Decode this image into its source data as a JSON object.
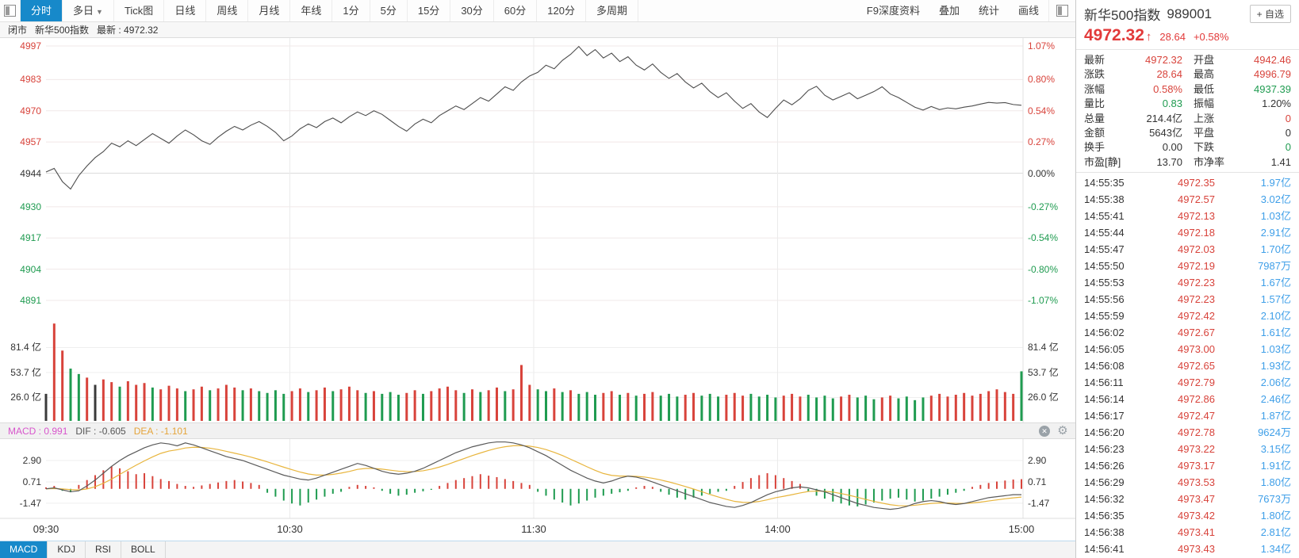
{
  "colors": {
    "red": "#d8433b",
    "green": "#1f9b50",
    "dark": "#3a3a3a",
    "accent": "#1789ca",
    "price_line": "#4d4d4d",
    "dif_line": "#5a5a5a",
    "dea_line": "#e8b53d",
    "vol_text": "#3f9fe8",
    "macd_label": "#d855cc"
  },
  "toolbar": {
    "items": [
      {
        "label": "分时",
        "active": true
      },
      {
        "label": "多日",
        "caret": true
      },
      {
        "label": "Tick图"
      },
      {
        "label": "日线"
      },
      {
        "label": "周线"
      },
      {
        "label": "月线"
      },
      {
        "label": "年线"
      },
      {
        "label": "1分"
      },
      {
        "label": "5分"
      },
      {
        "label": "15分"
      },
      {
        "label": "30分"
      },
      {
        "label": "60分"
      },
      {
        "label": "120分"
      },
      {
        "label": "多周期"
      }
    ],
    "right_items": [
      "F9深度资料",
      "叠加",
      "统计",
      "画线"
    ]
  },
  "subheader": {
    "market_status": "闭市",
    "name": "新华500指数",
    "latest": "最新 : 4972.32"
  },
  "indicator": {
    "header": [
      {
        "text": "MACD : 0.991",
        "color": "#d855cc"
      },
      {
        "text": "DIF : -0.605",
        "color": "#555555"
      },
      {
        "text": "DEA : -1.101",
        "color": "#e5a43a"
      }
    ],
    "tabs": [
      "MACD",
      "KDJ",
      "RSI",
      "BOLL"
    ],
    "active_tab": "MACD"
  },
  "panel": {
    "title": "新华500指数",
    "code": "989001",
    "watch_button": "+ 自选",
    "price": "4972.32",
    "arrow": "↑",
    "change": "28.64",
    "change_pct": "+0.58%",
    "quote": [
      {
        "l1": "最新",
        "v1": "4972.32",
        "c1": "red",
        "l2": "开盘",
        "v2": "4942.46",
        "c2": "red"
      },
      {
        "l1": "涨跌",
        "v1": "28.64",
        "c1": "red",
        "l2": "最高",
        "v2": "4996.79",
        "c2": "red"
      },
      {
        "l1": "涨幅",
        "v1": "0.58%",
        "c1": "red",
        "l2": "最低",
        "v2": "4937.39",
        "c2": "green"
      },
      {
        "l1": "量比",
        "v1": "0.83",
        "c1": "green",
        "l2": "振幅",
        "v2": "1.20%",
        "c2": "dark"
      },
      {
        "l1": "总量",
        "v1": "214.4亿",
        "c1": "dark",
        "l2": "上涨",
        "v2": "0",
        "c2": "red"
      },
      {
        "l1": "金额",
        "v1": "5643亿",
        "c1": "dark",
        "l2": "平盘",
        "v2": "0",
        "c2": "dark"
      },
      {
        "l1": "换手",
        "v1": "0.00",
        "c1": "dark",
        "l2": "下跌",
        "v2": "0",
        "c2": "green"
      },
      {
        "l1": "市盈[静]",
        "v1": "13.70",
        "c1": "dark",
        "l2": "市净率",
        "v2": "1.41",
        "c2": "dark"
      }
    ],
    "ticks": [
      {
        "time": "14:55:35",
        "price": "4972.35",
        "vol": "1.97亿"
      },
      {
        "time": "14:55:38",
        "price": "4972.57",
        "vol": "3.02亿"
      },
      {
        "time": "14:55:41",
        "price": "4972.13",
        "vol": "1.03亿"
      },
      {
        "time": "14:55:44",
        "price": "4972.18",
        "vol": "2.91亿"
      },
      {
        "time": "14:55:47",
        "price": "4972.03",
        "vol": "1.70亿"
      },
      {
        "time": "14:55:50",
        "price": "4972.19",
        "vol": "7987万"
      },
      {
        "time": "14:55:53",
        "price": "4972.23",
        "vol": "1.67亿"
      },
      {
        "time": "14:55:56",
        "price": "4972.23",
        "vol": "1.57亿"
      },
      {
        "time": "14:55:59",
        "price": "4972.42",
        "vol": "2.10亿"
      },
      {
        "time": "14:56:02",
        "price": "4972.67",
        "vol": "1.61亿"
      },
      {
        "time": "14:56:05",
        "price": "4973.00",
        "vol": "1.03亿"
      },
      {
        "time": "14:56:08",
        "price": "4972.65",
        "vol": "1.93亿"
      },
      {
        "time": "14:56:11",
        "price": "4972.79",
        "vol": "2.06亿"
      },
      {
        "time": "14:56:14",
        "price": "4972.86",
        "vol": "2.46亿"
      },
      {
        "time": "14:56:17",
        "price": "4972.47",
        "vol": "1.87亿"
      },
      {
        "time": "14:56:20",
        "price": "4972.78",
        "vol": "9624万"
      },
      {
        "time": "14:56:23",
        "price": "4973.22",
        "vol": "3.15亿"
      },
      {
        "time": "14:56:26",
        "price": "4973.17",
        "vol": "1.91亿"
      },
      {
        "time": "14:56:29",
        "price": "4973.53",
        "vol": "1.80亿"
      },
      {
        "time": "14:56:32",
        "price": "4973.47",
        "vol": "7673万"
      },
      {
        "time": "14:56:35",
        "price": "4973.42",
        "vol": "1.80亿"
      },
      {
        "time": "14:56:38",
        "price": "4973.41",
        "vol": "2.81亿"
      },
      {
        "time": "14:56:41",
        "price": "4973.43",
        "vol": "1.34亿"
      }
    ]
  },
  "chart_data": {
    "type": "line",
    "title": "新华500指数 分时图",
    "x_labels": [
      "09:30",
      "10:30",
      "11:30",
      "14:00",
      "15:00"
    ],
    "price_axis_left": [
      "4997",
      "4983",
      "4970",
      "4957",
      "4944",
      "4930",
      "4917",
      "4904",
      "4891"
    ],
    "price_axis_left_colors": [
      "red",
      "red",
      "red",
      "red",
      "dark",
      "green",
      "green",
      "green",
      "green"
    ],
    "price_axis_right": [
      "1.07%",
      "0.80%",
      "0.54%",
      "0.27%",
      "0.00%",
      "-0.27%",
      "-0.54%",
      "-0.80%",
      "-1.07%"
    ],
    "prev_close": 4943.68,
    "open": 4942.46,
    "high": 4996.79,
    "low": 4937.39,
    "close": 4972.32,
    "price_range": [
      4891,
      4997
    ],
    "price": [
      4944.5,
      4946.0,
      4940.5,
      4937.4,
      4943.0,
      4947.0,
      4950.5,
      4953.0,
      4956.5,
      4955.0,
      4957.5,
      4955.5,
      4958.0,
      4960.5,
      4958.5,
      4956.5,
      4959.5,
      4962.0,
      4960.0,
      4957.5,
      4956.0,
      4959.0,
      4961.5,
      4963.5,
      4962.0,
      4964.0,
      4965.5,
      4963.5,
      4961.0,
      4957.5,
      4959.5,
      4962.5,
      4964.5,
      4963.0,
      4965.5,
      4967.0,
      4965.0,
      4967.5,
      4969.5,
      4968.0,
      4970.0,
      4968.5,
      4966.0,
      4963.5,
      4961.5,
      4964.5,
      4966.5,
      4965.0,
      4968.0,
      4970.0,
      4972.0,
      4970.5,
      4973.0,
      4975.5,
      4974.0,
      4977.0,
      4980.0,
      4978.5,
      4982.0,
      4984.5,
      4986.0,
      4989.0,
      4987.5,
      4991.0,
      4993.5,
      4996.8,
      4993.0,
      4995.5,
      4992.0,
      4994.0,
      4990.5,
      4992.5,
      4989.0,
      4987.0,
      4989.5,
      4986.0,
      4983.5,
      4985.5,
      4982.0,
      4979.5,
      4981.5,
      4978.0,
      4975.5,
      4977.5,
      4974.0,
      4971.0,
      4973.0,
      4969.5,
      4967.2,
      4971.0,
      4974.5,
      4972.5,
      4975.0,
      4978.5,
      4980.2,
      4976.5,
      4974.5,
      4976.0,
      4977.5,
      4975.0,
      4976.5,
      4978.0,
      4980.0,
      4977.0,
      4975.5,
      4973.5,
      4971.5,
      4970.3,
      4971.8,
      4970.5,
      4971.2,
      4970.8,
      4971.5,
      4972.0,
      4972.8,
      4973.5,
      4973.2,
      4973.4,
      4972.6,
      4972.3
    ],
    "volume_axis": [
      "81.4 亿",
      "53.7 亿",
      "26.0 亿"
    ],
    "volume_unit": "亿",
    "volume": [
      30,
      108,
      78,
      58,
      52,
      48,
      40,
      46,
      43,
      38,
      44,
      40,
      42,
      37,
      35,
      39,
      36,
      33,
      35,
      38,
      34,
      36,
      40,
      37,
      34,
      36,
      33,
      31,
      34,
      30,
      33,
      36,
      32,
      34,
      37,
      33,
      35,
      38,
      34,
      31,
      33,
      30,
      32,
      29,
      31,
      34,
      30,
      33,
      36,
      38,
      34,
      31,
      35,
      32,
      34,
      37,
      33,
      35,
      62,
      40,
      35,
      33,
      36,
      32,
      34,
      30,
      32,
      29,
      31,
      33,
      29,
      31,
      28,
      30,
      32,
      28,
      30,
      27,
      29,
      31,
      28,
      30,
      27,
      29,
      31,
      28,
      30,
      27,
      29,
      26,
      28,
      30,
      27,
      29,
      26,
      28,
      25,
      27,
      29,
      26,
      28,
      24,
      26,
      28,
      25,
      27,
      23,
      26,
      28,
      30,
      27,
      29,
      31,
      28,
      30,
      33,
      35,
      32,
      30,
      55
    ],
    "volume_colors": [
      "k",
      "r",
      "r",
      "g",
      "g",
      "r",
      "k",
      "r",
      "r",
      "g",
      "r",
      "r",
      "r",
      "g",
      "r",
      "r",
      "r",
      "g",
      "r",
      "r",
      "g",
      "r",
      "r",
      "r",
      "g",
      "r",
      "g",
      "g",
      "g",
      "g",
      "r",
      "r",
      "g",
      "r",
      "r",
      "g",
      "r",
      "r",
      "r",
      "g",
      "r",
      "g",
      "g",
      "g",
      "r",
      "r",
      "g",
      "r",
      "r",
      "r",
      "r",
      "g",
      "r",
      "g",
      "r",
      "r",
      "g",
      "r",
      "r",
      "r",
      "g",
      "g",
      "r",
      "g",
      "r",
      "g",
      "g",
      "g",
      "r",
      "r",
      "g",
      "r",
      "g",
      "r",
      "r",
      "g",
      "g",
      "g",
      "r",
      "r",
      "g",
      "g",
      "g",
      "r",
      "r",
      "r",
      "g",
      "g",
      "g",
      "g",
      "r",
      "r",
      "r",
      "g",
      "g",
      "g",
      "g",
      "r",
      "r",
      "g",
      "g",
      "g",
      "r",
      "r",
      "g",
      "g",
      "g",
      "g",
      "r",
      "r",
      "r",
      "r",
      "r",
      "r",
      "r",
      "r",
      "r",
      "r",
      "r",
      "g"
    ],
    "macd_axis": [
      "2.90",
      "0.71",
      "-1.47"
    ],
    "macd_values": {
      "macd": 0.991,
      "dif": -0.605,
      "dea": -1.101
    },
    "dif": [
      0.0,
      0.1,
      -0.1,
      -0.3,
      -0.2,
      0.3,
      0.9,
      1.6,
      2.3,
      2.9,
      3.4,
      3.8,
      4.2,
      4.5,
      4.7,
      4.6,
      4.4,
      4.7,
      4.5,
      4.2,
      3.9,
      3.6,
      3.3,
      3.1,
      2.9,
      2.6,
      2.3,
      2.0,
      1.7,
      1.4,
      1.2,
      1.0,
      0.9,
      1.1,
      1.4,
      1.7,
      2.0,
      2.3,
      2.6,
      2.4,
      2.1,
      1.8,
      1.6,
      1.5,
      1.6,
      1.8,
      2.1,
      2.5,
      2.9,
      3.3,
      3.7,
      4.0,
      4.3,
      4.5,
      4.7,
      4.8,
      4.8,
      4.7,
      4.5,
      4.2,
      3.8,
      3.4,
      2.9,
      2.4,
      1.9,
      1.5,
      1.1,
      0.8,
      0.6,
      0.8,
      1.1,
      1.3,
      1.2,
      1.0,
      0.7,
      0.4,
      0.1,
      -0.2,
      -0.5,
      -0.8,
      -1.1,
      -1.4,
      -1.6,
      -1.8,
      -1.9,
      -1.7,
      -1.4,
      -1.0,
      -0.6,
      -0.3,
      -0.1,
      0.1,
      0.2,
      0.1,
      -0.1,
      -0.3,
      -0.6,
      -0.9,
      -1.2,
      -1.5,
      -1.7,
      -1.9,
      -2.0,
      -2.1,
      -2.0,
      -1.8,
      -1.5,
      -1.3,
      -1.2,
      -1.3,
      -1.5,
      -1.6,
      -1.5,
      -1.3,
      -1.1,
      -0.9,
      -0.8,
      -0.7,
      -0.6,
      -0.6
    ],
    "dea": [
      0.0,
      0.03,
      -0.01,
      -0.08,
      -0.11,
      -0.01,
      0.22,
      0.57,
      1.0,
      1.48,
      1.96,
      2.42,
      2.86,
      3.27,
      3.63,
      3.87,
      4.0,
      4.18,
      4.26,
      4.24,
      4.16,
      4.02,
      3.84,
      3.65,
      3.46,
      3.25,
      3.01,
      2.76,
      2.49,
      2.22,
      1.96,
      1.72,
      1.52,
      1.41,
      1.41,
      1.48,
      1.61,
      1.78,
      1.99,
      2.09,
      2.09,
      2.02,
      1.91,
      1.81,
      1.76,
      1.77,
      1.85,
      2.01,
      2.23,
      2.5,
      2.8,
      3.1,
      3.4,
      3.67,
      3.93,
      4.15,
      4.31,
      4.41,
      4.43,
      4.37,
      4.23,
      4.02,
      3.74,
      3.41,
      3.03,
      2.65,
      2.26,
      1.89,
      1.57,
      1.38,
      1.31,
      1.31,
      1.28,
      1.21,
      1.08,
      0.91,
      0.71,
      0.48,
      0.24,
      -0.02,
      -0.29,
      -0.57,
      -0.83,
      -1.07,
      -1.28,
      -1.38,
      -1.39,
      -1.29,
      -1.12,
      -0.91,
      -0.76,
      -0.6,
      -0.42,
      -0.27,
      -0.23,
      -0.25,
      -0.33,
      -0.48,
      -0.66,
      -0.87,
      -1.08,
      -1.28,
      -1.46,
      -1.62,
      -1.72,
      -1.74,
      -1.68,
      -1.58,
      -1.49,
      -1.44,
      -1.45,
      -1.49,
      -1.49,
      -1.44,
      -1.36,
      -1.24,
      -1.13,
      -1.02,
      -0.92,
      -0.84
    ],
    "hist": [
      0.15,
      0.3,
      -0.2,
      -0.35,
      0.4,
      0.9,
      1.4,
      1.9,
      2.3,
      2.1,
      1.8,
      1.5,
      1.6,
      1.3,
      1.0,
      0.8,
      0.5,
      0.3,
      0.2,
      0.35,
      0.5,
      0.65,
      0.8,
      0.9,
      0.75,
      0.6,
      0.4,
      -0.4,
      -0.8,
      -1.2,
      -1.5,
      -1.7,
      -1.4,
      -1.1,
      -0.8,
      -0.5,
      -0.3,
      0.2,
      0.4,
      0.3,
      0.15,
      -0.2,
      -0.5,
      -0.7,
      -0.6,
      -0.4,
      -0.25,
      -0.1,
      0.3,
      0.6,
      0.9,
      1.1,
      1.3,
      1.5,
      1.35,
      1.2,
      1.0,
      0.8,
      0.6,
      0.4,
      -0.3,
      -0.7,
      -1.1,
      -1.4,
      -1.7,
      -1.5,
      -1.2,
      -0.9,
      -0.7,
      -0.5,
      -0.35,
      -0.2,
      0.15,
      0.3,
      0.2,
      -0.3,
      -0.6,
      -0.9,
      -1.1,
      -0.9,
      -0.7,
      -0.5,
      -0.3,
      -0.2,
      0.3,
      0.7,
      1.1,
      1.4,
      1.6,
      1.4,
      1.1,
      0.8,
      0.5,
      -0.3,
      -0.7,
      -1.0,
      -1.3,
      -1.5,
      -1.7,
      -1.8,
      -1.6,
      -1.4,
      -1.2,
      -1.0,
      -0.9,
      -1.1,
      -1.3,
      -1.2,
      -1.0,
      -0.8,
      -0.6,
      -0.4,
      -0.2,
      0.2,
      0.4,
      0.6,
      0.75,
      0.85,
      0.95,
      0.99
    ]
  }
}
